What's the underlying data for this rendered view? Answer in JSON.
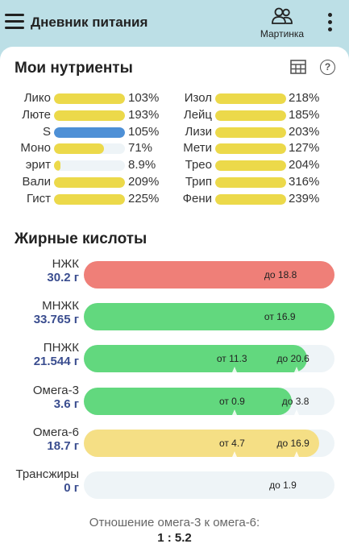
{
  "header": {
    "title": "Дневник питания",
    "profile_name": "Мартинка"
  },
  "nutrients": {
    "title": "Мои нутриенты",
    "colors": {
      "normal": "#ecd94a",
      "highlight": "#4e90d6"
    },
    "left": [
      {
        "name": "Лико",
        "percent_label": "103%",
        "fill": 1.0,
        "color": "#ecd94a"
      },
      {
        "name": "Люте",
        "percent_label": "193%",
        "fill": 1.0,
        "color": "#ecd94a"
      },
      {
        "name": "S",
        "percent_label": "105%",
        "fill": 1.0,
        "color": "#4e90d6"
      },
      {
        "name": "Моно",
        "percent_label": "71%",
        "fill": 0.71,
        "color": "#ecd94a"
      },
      {
        "name": "эрит",
        "percent_label": "8.9%",
        "fill": 0.089,
        "color": "#ecd94a"
      },
      {
        "name": "Вали",
        "percent_label": "209%",
        "fill": 1.0,
        "color": "#ecd94a"
      },
      {
        "name": "Гист",
        "percent_label": "225%",
        "fill": 1.0,
        "color": "#ecd94a"
      }
    ],
    "right": [
      {
        "name": "Изол",
        "percent_label": "218%",
        "fill": 1.0,
        "color": "#ecd94a"
      },
      {
        "name": "Лейц",
        "percent_label": "185%",
        "fill": 1.0,
        "color": "#ecd94a"
      },
      {
        "name": "Лизи",
        "percent_label": "203%",
        "fill": 1.0,
        "color": "#ecd94a"
      },
      {
        "name": "Мети",
        "percent_label": "127%",
        "fill": 1.0,
        "color": "#ecd94a"
      },
      {
        "name": "Трео",
        "percent_label": "204%",
        "fill": 1.0,
        "color": "#ecd94a"
      },
      {
        "name": "Трип",
        "percent_label": "316%",
        "fill": 1.0,
        "color": "#ecd94a"
      },
      {
        "name": "Фени",
        "percent_label": "239%",
        "fill": 1.0,
        "color": "#ecd94a"
      }
    ]
  },
  "fatty_acids": {
    "title": "Жирные кислоты",
    "rows": [
      {
        "name": "НЖК",
        "value": "30.2 г",
        "fill": 1.0,
        "color": "#ef7f78",
        "labels": [
          {
            "text": "до 18.8",
            "pos": 0.72
          }
        ],
        "ticks": []
      },
      {
        "name": "МНЖК",
        "value": "33.765 г",
        "fill": 1.0,
        "color": "#62d87e",
        "labels": [
          {
            "text": "от 16.9",
            "pos": 0.72
          }
        ],
        "ticks": []
      },
      {
        "name": "ПНЖК",
        "value": "21.544 г",
        "fill": 0.89,
        "color": "#62d87e",
        "labels": [
          {
            "text": "от 11.3",
            "pos": 0.53
          },
          {
            "text": "до 20.6",
            "pos": 0.77
          }
        ],
        "ticks": [
          0.6,
          0.85
        ]
      },
      {
        "name": "Омега-3",
        "value": "3.6 г",
        "fill": 0.83,
        "color": "#62d87e",
        "labels": [
          {
            "text": "от 0.9",
            "pos": 0.54
          },
          {
            "text": "до 3.8",
            "pos": 0.79
          }
        ],
        "ticks": [
          0.6,
          0.85
        ]
      },
      {
        "name": "Омега-6",
        "value": "18.7 г",
        "fill": 0.94,
        "color": "#f5df85",
        "labels": [
          {
            "text": "от 4.7",
            "pos": 0.54
          },
          {
            "text": "до 16.9",
            "pos": 0.77
          }
        ],
        "ticks": [
          0.6,
          0.85
        ]
      },
      {
        "name": "Трансжиры",
        "value": "0 г",
        "fill": 0.0,
        "color": "#62d87e",
        "labels": [
          {
            "text": "до 1.9",
            "pos": 0.74
          }
        ],
        "ticks": []
      }
    ]
  },
  "ratio": {
    "label": "Отношение омега-3 к омега-6:",
    "value": "1 : 5.2"
  }
}
